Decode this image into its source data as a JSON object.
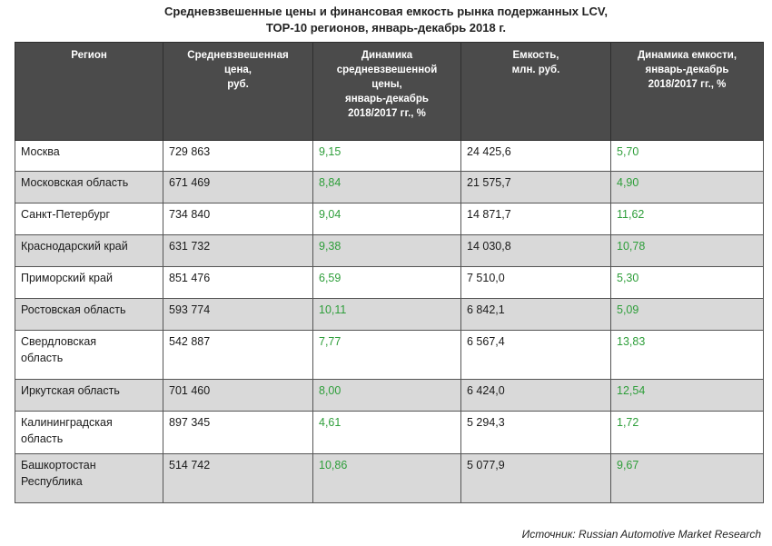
{
  "chart_data": {
    "type": "table",
    "title": [
      "Средневзвешенные цены и финансовая емкость рынка подержанных LCV,",
      "ТОР-10 регионов, январь-декабрь 2018 г."
    ],
    "columns": [
      "Регион",
      "Средневзвешенная цена, руб.",
      "Динамика средневзвешенной цены, январь-декабрь 2018/2017 гг., %",
      "Емкость, млн. руб.",
      "Динамика емкости, январь-декабрь 2018/2017 гг., %"
    ],
    "header_lines": [
      [
        "Регион"
      ],
      [
        "Средневзвешенная",
        "цена,",
        "руб."
      ],
      [
        "Динамика",
        "средневзвешенной",
        "цены,",
        "январь-декабрь",
        "2018/2017 гг., %"
      ],
      [
        "Емкость,",
        "млн. руб."
      ],
      [
        "Динамика емкости,",
        "январь-декабрь",
        "2018/2017 гг., %"
      ]
    ],
    "rows": [
      {
        "region": [
          "Москва"
        ],
        "price": "729 863",
        "price_dyn": "9,15",
        "capacity": "24 425,6",
        "capacity_dyn": "5,70"
      },
      {
        "region": [
          "Московская область"
        ],
        "price": "671 469",
        "price_dyn": "8,84",
        "capacity": "21 575,7",
        "capacity_dyn": "4,90"
      },
      {
        "region": [
          "Санкт-Петербург"
        ],
        "price": "734 840",
        "price_dyn": "9,04",
        "capacity": "14 871,7",
        "capacity_dyn": "11,62"
      },
      {
        "region": [
          "Краснодарский край"
        ],
        "price": "631 732",
        "price_dyn": "9,38",
        "capacity": "14 030,8",
        "capacity_dyn": "10,78"
      },
      {
        "region": [
          "Приморский край"
        ],
        "price": "851 476",
        "price_dyn": "6,59",
        "capacity": "7 510,0",
        "capacity_dyn": "5,30"
      },
      {
        "region": [
          "Ростовская область"
        ],
        "price": "593 774",
        "price_dyn": "10,11",
        "capacity": "6 842,1",
        "capacity_dyn": "5,09"
      },
      {
        "region": [
          "Свердловская",
          "область"
        ],
        "price": "542 887",
        "price_dyn": "7,77",
        "capacity": "6 567,4",
        "capacity_dyn": "13,83"
      },
      {
        "region": [
          "Иркутская область"
        ],
        "price": "701 460",
        "price_dyn": "8,00",
        "capacity": "6 424,0",
        "capacity_dyn": "12,54"
      },
      {
        "region": [
          "Калининградская",
          "область"
        ],
        "price": "897 345",
        "price_dyn": "4,61",
        "capacity": "5 294,3",
        "capacity_dyn": "1,72"
      },
      {
        "region": [
          "Башкортостан",
          "Республика"
        ],
        "price": "514 742",
        "price_dyn": "10,86",
        "capacity": "5 077,9",
        "capacity_dyn": "9,67"
      }
    ],
    "source": "Источник: Russian Automotive Market Research"
  },
  "colors": {
    "header_bg": "#4b4b4b",
    "header_text": "#ffffff",
    "stripe": "#d9d9d9",
    "positive": "#2e9e3a"
  }
}
